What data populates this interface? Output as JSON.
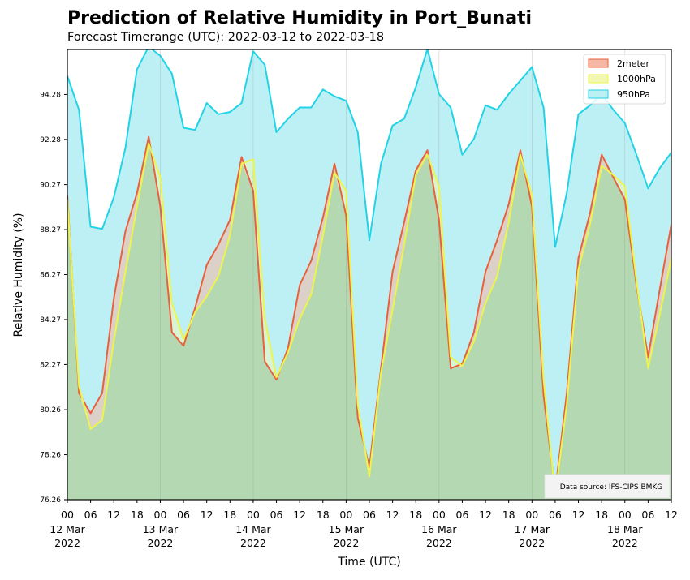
{
  "chart_data": {
    "type": "area",
    "title": "Prediction of Relative Humidity in Port_Bunati",
    "subtitle": "Forecast Timerange (UTC): 2022-03-12 to 2022-03-18",
    "xlabel": "Time (UTC)",
    "ylabel": "Relative Humidity (%)",
    "ylim": [
      76.26,
      96.28
    ],
    "yticks": [
      "76.26",
      "78.26",
      "80.26",
      "82.27",
      "84.27",
      "86.27",
      "88.27",
      "90.27",
      "92.28",
      "94.28"
    ],
    "x_hours": [
      0,
      3,
      6,
      9,
      12,
      15,
      18,
      21,
      24,
      27,
      30,
      33,
      36,
      39,
      42,
      45,
      48,
      51,
      54,
      57,
      60,
      63,
      66,
      69,
      72,
      75,
      78,
      81,
      84,
      87,
      90,
      93,
      96,
      99,
      102,
      105,
      108,
      111,
      114,
      117,
      120,
      123,
      126,
      129,
      132,
      135,
      138,
      141,
      144,
      147,
      150,
      153,
      156
    ],
    "xticks": [
      {
        "hour": 0,
        "hh": "00",
        "date": "12 Mar",
        "year": "2022"
      },
      {
        "hour": 6,
        "hh": "06"
      },
      {
        "hour": 12,
        "hh": "12"
      },
      {
        "hour": 18,
        "hh": "18"
      },
      {
        "hour": 24,
        "hh": "00",
        "date": "13 Mar",
        "year": "2022"
      },
      {
        "hour": 30,
        "hh": "06"
      },
      {
        "hour": 36,
        "hh": "12"
      },
      {
        "hour": 42,
        "hh": "18"
      },
      {
        "hour": 48,
        "hh": "00",
        "date": "14 Mar",
        "year": "2022"
      },
      {
        "hour": 54,
        "hh": "06"
      },
      {
        "hour": 60,
        "hh": "12"
      },
      {
        "hour": 66,
        "hh": "18"
      },
      {
        "hour": 72,
        "hh": "00",
        "date": "15 Mar",
        "year": "2022"
      },
      {
        "hour": 78,
        "hh": "06"
      },
      {
        "hour": 84,
        "hh": "12"
      },
      {
        "hour": 90,
        "hh": "18"
      },
      {
        "hour": 96,
        "hh": "00",
        "date": "16 Mar",
        "year": "2022"
      },
      {
        "hour": 102,
        "hh": "06"
      },
      {
        "hour": 108,
        "hh": "12"
      },
      {
        "hour": 114,
        "hh": "18"
      },
      {
        "hour": 120,
        "hh": "00",
        "date": "17 Mar",
        "year": "2022"
      },
      {
        "hour": 126,
        "hh": "06"
      },
      {
        "hour": 132,
        "hh": "12"
      },
      {
        "hour": 138,
        "hh": "18"
      },
      {
        "hour": 144,
        "hh": "00",
        "date": "18 Mar",
        "year": "2022"
      },
      {
        "hour": 150,
        "hh": "06"
      },
      {
        "hour": 156,
        "hh": "12"
      }
    ],
    "series": [
      {
        "name": "950hPa",
        "color": "#22d3e6",
        "fill": "#bdf0f5",
        "values": [
          95.1,
          93.6,
          88.4,
          88.3,
          89.7,
          91.9,
          95.4,
          96.4,
          96.0,
          95.2,
          92.8,
          92.7,
          93.9,
          93.4,
          93.5,
          93.9,
          96.2,
          95.6,
          92.6,
          93.2,
          93.7,
          93.7,
          94.5,
          94.2,
          94.0,
          92.6,
          87.8,
          91.2,
          92.9,
          93.2,
          94.6,
          96.3,
          94.3,
          93.7,
          91.6,
          92.3,
          93.8,
          93.6,
          94.3,
          94.9,
          95.5,
          93.7,
          87.5,
          89.9,
          93.4,
          93.8,
          94.3,
          93.6,
          93.0,
          91.6,
          90.1,
          91.0,
          91.7
        ]
      },
      {
        "name": "2meter",
        "color": "#e8603c",
        "fill": "#f5b8a4",
        "values": [
          89.8,
          81.0,
          80.1,
          81.0,
          85.2,
          88.2,
          89.9,
          92.4,
          89.3,
          83.7,
          83.1,
          84.8,
          86.7,
          87.6,
          88.7,
          91.5,
          90.0,
          82.4,
          81.6,
          83.0,
          85.8,
          86.9,
          88.8,
          91.2,
          88.9,
          79.9,
          77.7,
          82.1,
          86.4,
          88.6,
          90.9,
          91.8,
          88.7,
          82.1,
          82.3,
          83.7,
          86.4,
          87.8,
          89.4,
          91.8,
          89.3,
          80.9,
          76.6,
          81.0,
          87.0,
          89.0,
          91.6,
          90.6,
          89.6,
          85.8,
          82.6,
          85.6,
          88.5
        ]
      },
      {
        "name": "1000hPa",
        "color": "#eef54a",
        "fill": "#f2f8b3",
        "values": [
          89.6,
          81.3,
          79.4,
          79.8,
          83.3,
          86.4,
          89.3,
          92.1,
          90.6,
          85.0,
          83.4,
          84.6,
          85.3,
          86.2,
          88.0,
          91.2,
          91.4,
          84.3,
          81.7,
          82.8,
          84.3,
          85.4,
          88.0,
          90.8,
          90.0,
          80.5,
          77.3,
          81.9,
          84.7,
          87.6,
          90.7,
          91.6,
          90.2,
          82.6,
          82.2,
          83.3,
          85.0,
          86.2,
          88.6,
          91.6,
          89.8,
          81.6,
          76.4,
          80.5,
          86.5,
          88.5,
          91.1,
          90.7,
          90.2,
          86.0,
          82.1,
          84.5,
          87.0
        ]
      }
    ],
    "legend": {
      "position": "top-right",
      "items": [
        "2meter",
        "1000hPa",
        "950hPa"
      ]
    },
    "grid": "vertical",
    "source_note": "Data source: IFS-CIPS BMKG"
  }
}
